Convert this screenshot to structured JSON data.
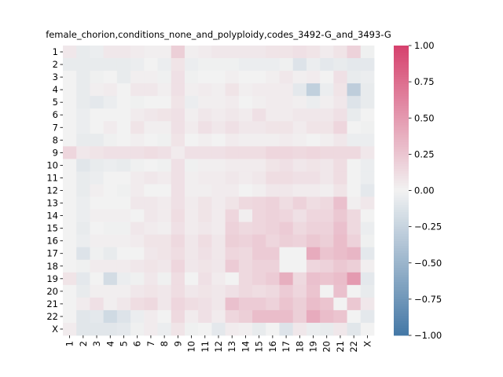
{
  "chart_data": {
    "type": "heatmap",
    "title": "female_chorion,conditions_none_and_polyploidy,codes_3492-G_and_3493-G",
    "xlabel": "",
    "ylabel": "",
    "x_labels": [
      "1",
      "2",
      "3",
      "4",
      "5",
      "6",
      "7",
      "8",
      "9",
      "10",
      "11",
      "12",
      "13",
      "14",
      "15",
      "16",
      "17",
      "18",
      "19",
      "20",
      "21",
      "22",
      "X"
    ],
    "y_labels": [
      "1",
      "2",
      "3",
      "4",
      "5",
      "6",
      "7",
      "8",
      "9",
      "10",
      "11",
      "12",
      "13",
      "14",
      "15",
      "16",
      "17",
      "18",
      "19",
      "20",
      "21",
      "22",
      "X"
    ],
    "colorbar": {
      "vmin": -1.0,
      "vmax": 1.0,
      "ticks": [
        -1.0,
        -0.75,
        -0.5,
        -0.25,
        0.0,
        0.25,
        0.5,
        0.75,
        1.0
      ],
      "tick_labels": [
        "−1.00",
        "−0.75",
        "−0.50",
        "−0.25",
        "0.00",
        "0.25",
        "0.50",
        "0.75",
        "1.00"
      ],
      "low_color": "#4478a6",
      "mid_color": "#f2f2f2",
      "high_color": "#d6416d"
    },
    "values": [
      [
        0.06,
        -0.06,
        -0.04,
        0.06,
        0.06,
        0.04,
        0.02,
        0.02,
        0.2,
        0.02,
        0.04,
        0.06,
        0.06,
        0.06,
        0.06,
        0.08,
        0.08,
        0.1,
        0.08,
        0.04,
        0.08,
        0.18,
        -0.02
      ],
      [
        -0.06,
        -0.06,
        -0.06,
        -0.06,
        -0.06,
        -0.04,
        0.0,
        -0.04,
        0.08,
        -0.04,
        -0.02,
        -0.02,
        -0.02,
        -0.04,
        -0.04,
        -0.04,
        -0.02,
        -0.12,
        -0.04,
        -0.08,
        -0.06,
        -0.08,
        -0.08
      ],
      [
        0.0,
        -0.06,
        -0.02,
        0.0,
        -0.06,
        0.02,
        0.02,
        -0.02,
        0.1,
        -0.02,
        0.0,
        0.0,
        0.02,
        0.0,
        0.0,
        0.02,
        0.06,
        0.02,
        0.04,
        0.0,
        0.1,
        -0.06,
        -0.04
      ],
      [
        0.0,
        -0.06,
        0.02,
        0.04,
        0.0,
        0.06,
        0.06,
        0.02,
        0.1,
        0.02,
        0.04,
        0.02,
        0.08,
        0.02,
        0.04,
        0.04,
        0.04,
        -0.08,
        -0.28,
        -0.04,
        0.08,
        -0.3,
        -0.06
      ],
      [
        0.0,
        -0.06,
        -0.08,
        -0.04,
        0.0,
        -0.02,
        0.0,
        0.0,
        0.08,
        -0.04,
        0.02,
        0.02,
        0.04,
        0.0,
        0.02,
        0.04,
        0.04,
        0.02,
        -0.04,
        0.02,
        0.06,
        -0.12,
        -0.06
      ],
      [
        0.0,
        -0.04,
        0.0,
        0.0,
        0.0,
        0.04,
        0.06,
        0.08,
        0.1,
        0.02,
        0.06,
        0.04,
        0.06,
        0.04,
        0.1,
        0.04,
        0.04,
        0.06,
        0.06,
        0.06,
        0.1,
        -0.06,
        0.0
      ],
      [
        0.0,
        -0.04,
        0.0,
        0.04,
        0.0,
        0.08,
        0.02,
        0.02,
        0.1,
        0.04,
        0.1,
        0.06,
        0.1,
        0.06,
        0.06,
        0.08,
        0.08,
        0.04,
        0.08,
        0.08,
        0.16,
        0.0,
        -0.02
      ],
      [
        0.0,
        -0.06,
        -0.06,
        -0.02,
        0.0,
        0.02,
        0.0,
        -0.02,
        0.08,
        0.0,
        0.02,
        0.0,
        0.04,
        0.02,
        0.02,
        0.02,
        0.04,
        0.02,
        0.0,
        0.02,
        0.06,
        -0.04,
        -0.04
      ],
      [
        0.16,
        0.06,
        0.08,
        0.1,
        0.1,
        0.1,
        0.12,
        0.1,
        0.04,
        0.1,
        0.1,
        0.1,
        0.12,
        0.12,
        0.12,
        0.16,
        0.16,
        0.14,
        0.16,
        0.14,
        0.14,
        0.14,
        0.06
      ],
      [
        0.0,
        -0.1,
        -0.06,
        -0.04,
        -0.06,
        -0.02,
        0.0,
        -0.02,
        0.1,
        -0.02,
        0.02,
        0.02,
        0.04,
        0.04,
        0.04,
        0.08,
        0.1,
        0.06,
        0.08,
        0.06,
        0.12,
        0.0,
        -0.04
      ],
      [
        0.0,
        -0.06,
        -0.04,
        0.0,
        0.0,
        0.04,
        0.06,
        0.04,
        0.1,
        0.02,
        0.04,
        0.04,
        0.06,
        0.04,
        0.06,
        0.12,
        0.12,
        0.1,
        0.1,
        0.06,
        0.12,
        0.0,
        -0.04
      ],
      [
        0.0,
        -0.06,
        0.02,
        0.0,
        -0.02,
        0.04,
        0.0,
        0.0,
        0.1,
        0.02,
        0.02,
        0.04,
        0.04,
        0.0,
        0.02,
        0.06,
        0.06,
        0.04,
        0.04,
        0.02,
        0.08,
        0.0,
        -0.08
      ],
      [
        0.0,
        -0.04,
        0.0,
        0.0,
        0.0,
        0.06,
        0.06,
        0.04,
        0.1,
        0.04,
        0.08,
        0.04,
        0.08,
        0.14,
        0.16,
        0.18,
        0.12,
        0.18,
        0.12,
        0.14,
        0.28,
        0.02,
        0.06
      ],
      [
        0.0,
        -0.04,
        0.02,
        0.02,
        0.02,
        0.0,
        0.06,
        0.04,
        0.12,
        0.04,
        0.08,
        0.04,
        0.16,
        0.02,
        0.16,
        0.18,
        0.16,
        0.1,
        0.16,
        0.16,
        0.24,
        0.14,
        0.0
      ],
      [
        0.0,
        -0.06,
        0.0,
        -0.02,
        -0.02,
        0.06,
        0.04,
        0.02,
        0.1,
        0.04,
        0.06,
        0.04,
        0.18,
        0.14,
        0.16,
        0.18,
        0.22,
        0.14,
        0.18,
        0.18,
        0.28,
        0.14,
        -0.04
      ],
      [
        0.0,
        -0.04,
        0.02,
        0.02,
        0.02,
        0.04,
        0.08,
        0.08,
        0.14,
        0.06,
        0.12,
        0.06,
        0.2,
        0.18,
        0.22,
        0.16,
        0.2,
        0.18,
        0.24,
        0.2,
        0.3,
        0.18,
        -0.02
      ],
      [
        0.0,
        -0.12,
        -0.02,
        -0.06,
        0.0,
        0.0,
        0.06,
        0.08,
        0.12,
        0.06,
        0.1,
        0.06,
        0.16,
        0.14,
        0.22,
        0.22,
        0.0,
        0.0,
        0.4,
        0.26,
        0.3,
        0.34,
        -0.08
      ],
      [
        0.0,
        -0.02,
        0.04,
        0.04,
        0.04,
        0.06,
        0.08,
        0.06,
        0.16,
        0.06,
        0.08,
        0.06,
        0.22,
        0.14,
        0.18,
        0.18,
        0.0,
        0.0,
        0.16,
        0.18,
        0.24,
        0.2,
        0.02
      ],
      [
        0.08,
        -0.08,
        0.0,
        -0.18,
        -0.04,
        -0.02,
        0.06,
        -0.02,
        0.12,
        0.0,
        0.1,
        0.04,
        0.0,
        0.14,
        0.18,
        0.22,
        0.38,
        0.14,
        0.28,
        0.26,
        0.3,
        0.5,
        -0.08
      ],
      [
        0.0,
        -0.06,
        0.02,
        0.02,
        0.02,
        0.06,
        0.08,
        0.06,
        0.12,
        0.06,
        0.08,
        0.06,
        0.1,
        0.14,
        0.12,
        0.14,
        0.22,
        0.16,
        0.26,
        0.0,
        0.28,
        0.0,
        -0.06
      ],
      [
        0.0,
        0.04,
        0.1,
        0.02,
        0.06,
        0.12,
        0.14,
        0.06,
        0.16,
        0.12,
        0.1,
        0.06,
        0.28,
        0.22,
        0.22,
        0.18,
        0.26,
        0.2,
        0.3,
        0.26,
        0.0,
        0.24,
        0.06
      ],
      [
        0.0,
        -0.1,
        -0.08,
        -0.2,
        -0.12,
        -0.04,
        0.04,
        0.0,
        0.14,
        0.04,
        0.1,
        0.04,
        0.16,
        0.2,
        0.3,
        0.3,
        0.3,
        0.2,
        0.4,
        0.3,
        0.26,
        0.0,
        -0.08
      ],
      [
        0.04,
        -0.1,
        -0.1,
        -0.1,
        -0.08,
        -0.02,
        0.04,
        -0.04,
        0.08,
        -0.02,
        0.0,
        -0.08,
        0.04,
        0.02,
        -0.06,
        0.0,
        -0.12,
        0.06,
        -0.04,
        -0.06,
        0.06,
        -0.1,
        0.0
      ]
    ]
  }
}
